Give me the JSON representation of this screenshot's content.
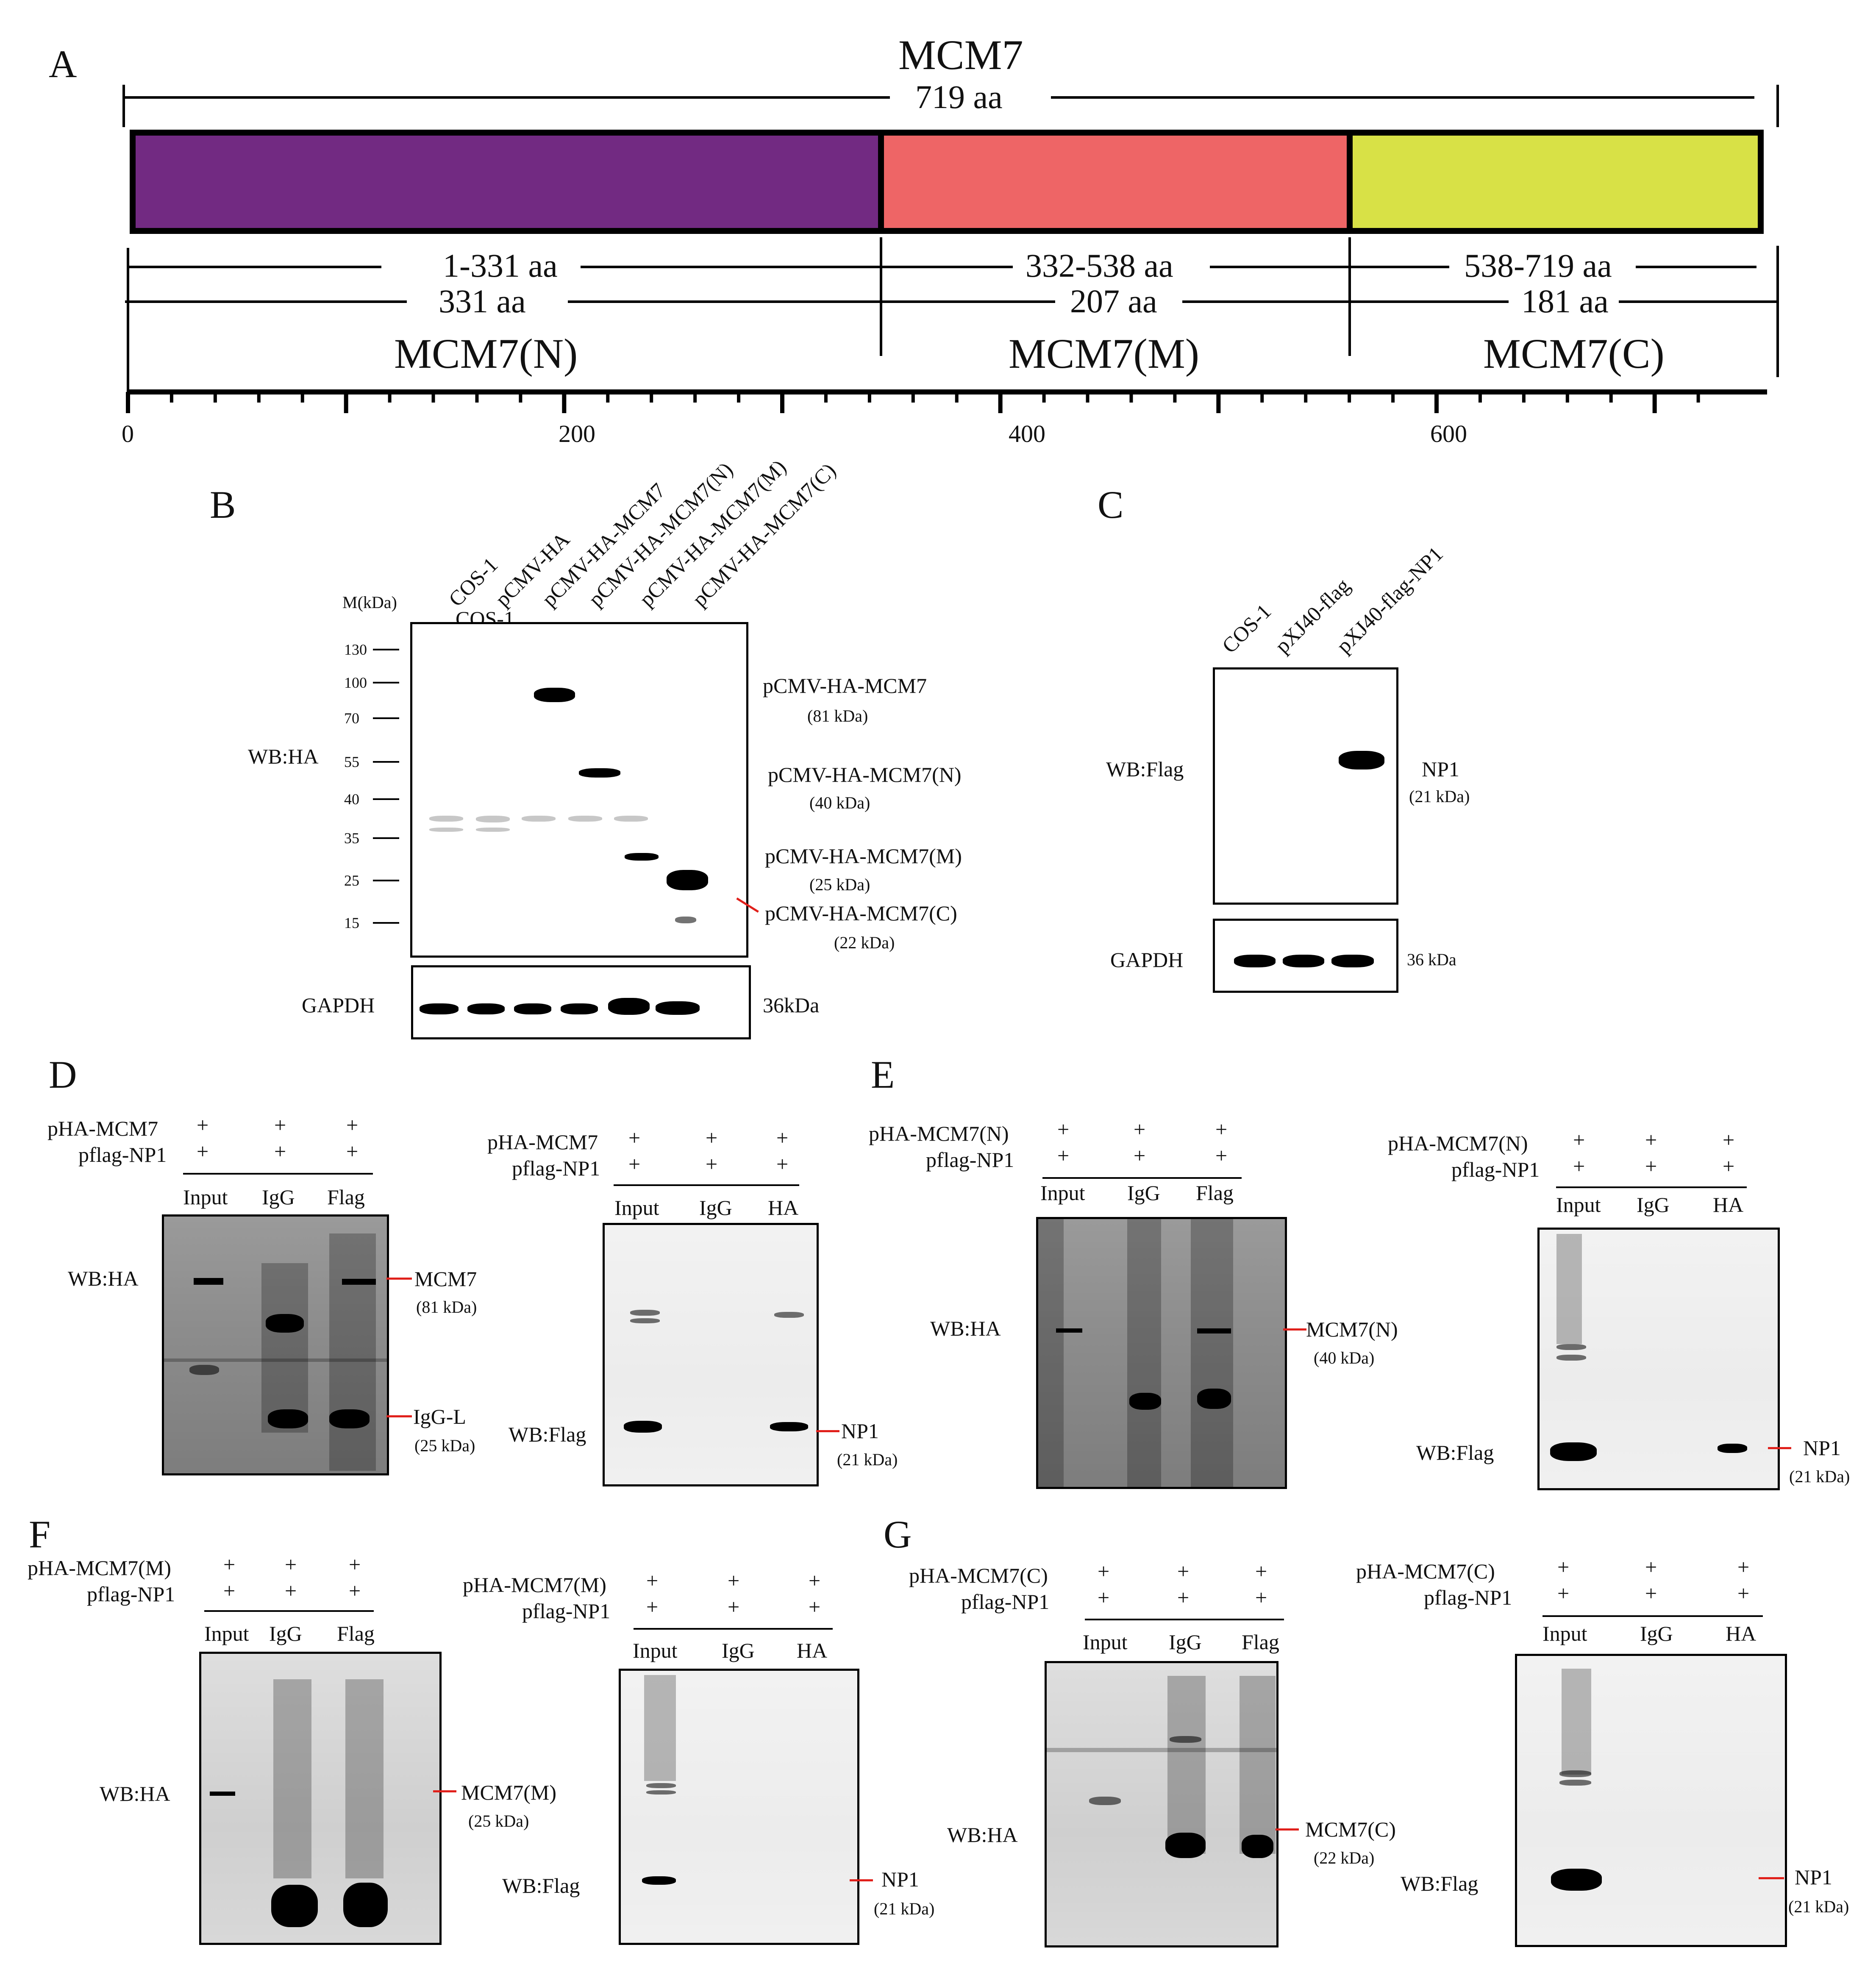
{
  "panels": {
    "A": {
      "letter": "A",
      "protein": "MCM7",
      "total_length": "719 aa",
      "domains": [
        {
          "range": "1-331 aa",
          "length": "331 aa",
          "name": "MCM7(N)",
          "color": "#722a82"
        },
        {
          "range": "332-538 aa",
          "length": "207 aa",
          "name": "MCM7(M)",
          "color": "#ee6566"
        },
        {
          "range": "538-719 aa",
          "length": "181 aa",
          "name": "MCM7(C)",
          "color": "#d8e146"
        }
      ],
      "axis_ticks": [
        "0",
        "200",
        "400",
        "600"
      ]
    },
    "B": {
      "letter": "B",
      "marker_header": "M(kDa)",
      "markers": [
        "130",
        "100",
        "70",
        "55",
        "40",
        "35",
        "25",
        "15"
      ],
      "lanes": [
        "COS-1",
        "pCMV-HA",
        "pCMV-HA-MCM7",
        "pCMV-HA-MCM7(N)",
        "pCMV-HA-MCM7(M)",
        "pCMV-HA-MCM7(C)"
      ],
      "wb_label": "WB:HA",
      "band_labels": [
        {
          "name": "pCMV-HA-MCM7",
          "size": "(81 kDa)"
        },
        {
          "name": "pCMV-HA-MCM7(N)",
          "size": "(40 kDa)"
        },
        {
          "name": "pCMV-HA-MCM7(M)",
          "size": "(25 kDa)"
        },
        {
          "name": "pCMV-HA-MCM7(C)",
          "size": "(22 kDa)"
        }
      ],
      "loading_label": "GAPDH",
      "loading_size": "36kDa"
    },
    "C": {
      "letter": "C",
      "lanes": [
        "COS-1",
        "pXJ40-flag",
        "pXJ40-flag-NP1"
      ],
      "wb_label": "WB:Flag",
      "band_name": "NP1",
      "band_size": "(21 kDa)",
      "loading_label": "GAPDH",
      "loading_size": "36 kDa"
    },
    "D": {
      "letter": "D",
      "left": {
        "row1": "pHA-MCM7",
        "row2": "pflag-NP1",
        "signs1": [
          "+",
          "+",
          "+"
        ],
        "signs2": [
          "+",
          "+",
          "+"
        ],
        "lanes": [
          "Input",
          "IgG",
          "Flag"
        ],
        "wb_label": "WB:HA",
        "labels": [
          {
            "name": "MCM7",
            "size": "(81 kDa)"
          },
          {
            "name": "IgG-L",
            "size": "(25 kDa)"
          }
        ]
      },
      "right": {
        "row1": "pHA-MCM7",
        "row2": "pflag-NP1",
        "signs1": [
          "+",
          "+",
          "+"
        ],
        "signs2": [
          "+",
          "+",
          "+"
        ],
        "lanes": [
          "Input",
          "IgG",
          "HA"
        ],
        "wb_label": "WB:Flag",
        "labels": [
          {
            "name": "NP1",
            "size": "(21 kDa)"
          }
        ]
      }
    },
    "E": {
      "letter": "E",
      "left": {
        "row1": "pHA-MCM7(N)",
        "row2": "pflag-NP1",
        "signs1": [
          "+",
          "+",
          "+"
        ],
        "signs2": [
          "+",
          "+",
          "+"
        ],
        "lanes": [
          "Input",
          "IgG",
          "Flag"
        ],
        "wb_label": "WB:HA",
        "labels": [
          {
            "name": "MCM7(N)",
            "size": "(40 kDa)"
          }
        ]
      },
      "right": {
        "row1": "pHA-MCM7(N)",
        "row2": "pflag-NP1",
        "signs1": [
          "+",
          "+",
          "+"
        ],
        "signs2": [
          "+",
          "+",
          "+"
        ],
        "lanes": [
          "Input",
          "IgG",
          "HA"
        ],
        "wb_label": "WB:Flag",
        "labels": [
          {
            "name": "NP1",
            "size": "(21 kDa)"
          }
        ]
      }
    },
    "F": {
      "letter": "F",
      "left": {
        "row1": "pHA-MCM7(M)",
        "row2": "pflag-NP1",
        "signs1": [
          "+",
          "+",
          "+"
        ],
        "signs2": [
          "+",
          "+",
          "+"
        ],
        "lanes": [
          "Input",
          "IgG",
          "Flag"
        ],
        "wb_label": "WB:HA",
        "labels": [
          {
            "name": "MCM7(M)",
            "size": "(25 kDa)"
          }
        ]
      },
      "right": {
        "row1": "pHA-MCM7(M)",
        "row2": "pflag-NP1",
        "signs1": [
          "+",
          "+",
          "+"
        ],
        "signs2": [
          "+",
          "+",
          "+"
        ],
        "lanes": [
          "Input",
          "IgG",
          "HA"
        ],
        "wb_label": "WB:Flag",
        "labels": [
          {
            "name": "NP1",
            "size": "(21 kDa)"
          }
        ]
      }
    },
    "G": {
      "letter": "G",
      "left": {
        "row1": "pHA-MCM7(C)",
        "row2": "pflag-NP1",
        "signs1": [
          "+",
          "+",
          "+"
        ],
        "signs2": [
          "+",
          "+",
          "+"
        ],
        "lanes": [
          "Input",
          "IgG",
          "Flag"
        ],
        "wb_label": "WB:HA",
        "labels": [
          {
            "name": "MCM7(C)",
            "size": "(22 kDa)"
          }
        ]
      },
      "right": {
        "row1": "pHA-MCM7(C)",
        "row2": "pflag-NP1",
        "signs1": [
          "+",
          "+",
          "+"
        ],
        "signs2": [
          "+",
          "+",
          "+"
        ],
        "lanes": [
          "Input",
          "IgG",
          "HA"
        ],
        "wb_label": "WB:Flag",
        "labels": [
          {
            "name": "NP1",
            "size": "(21 kDa)"
          }
        ]
      }
    }
  }
}
